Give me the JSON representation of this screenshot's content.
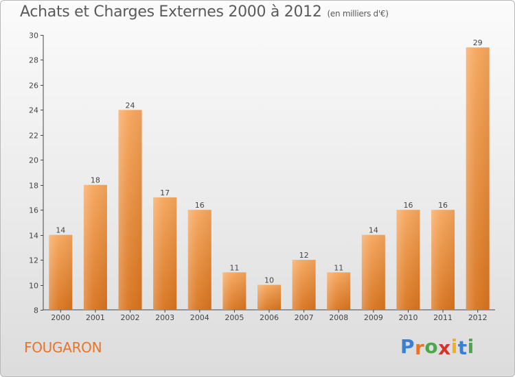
{
  "header": {
    "title": "Achats et Charges Externes 2000 à 2012",
    "subtitle": "(en milliers d'€)"
  },
  "footer": {
    "commune": "FOUGARON",
    "logo_letters": [
      "P",
      "r",
      "o",
      "x",
      "i",
      "t",
      "i"
    ],
    "logo_colors": [
      "#3a7fd0",
      "#e8742a",
      "#4aa84a",
      "#d8322f",
      "#f0b020",
      "#3a7fd0",
      "#4aa84a"
    ]
  },
  "colors": {
    "bar_top": "#f6a65c",
    "bar_bottom": "#d8741e",
    "axis": "#444444",
    "text": "#444444",
    "commune": "#e8742a"
  },
  "chart_data": {
    "type": "bar",
    "title": "Achats et Charges Externes 2000 à 2012",
    "subtitle": "(en milliers d'€)",
    "categories": [
      "2000",
      "2001",
      "2002",
      "2003",
      "2004",
      "2005",
      "2006",
      "2007",
      "2008",
      "2009",
      "2010",
      "2011",
      "2012"
    ],
    "values": [
      14,
      18,
      24,
      17,
      16,
      11,
      10,
      12,
      11,
      14,
      16,
      16,
      29
    ],
    "data_labels": [
      "14",
      "18",
      "24",
      "17",
      "16",
      "11",
      "10",
      "12",
      "11",
      "14",
      "16",
      "16",
      "29"
    ],
    "ylim": [
      8,
      30
    ],
    "yticks": [
      8,
      10,
      12,
      14,
      16,
      18,
      20,
      22,
      24,
      26,
      28,
      30
    ],
    "ytick_labels": [
      "8",
      "10",
      "12",
      "14",
      "16",
      "18",
      "20",
      "22",
      "24",
      "26",
      "28",
      "30"
    ],
    "grid": false,
    "legend": "none"
  }
}
